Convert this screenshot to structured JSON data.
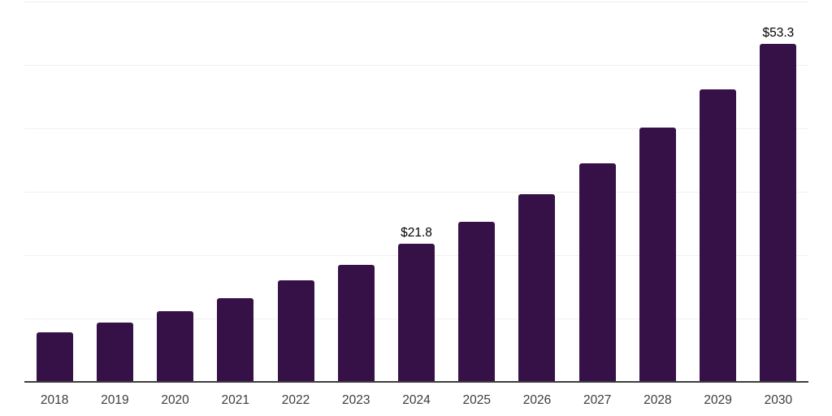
{
  "chart_data": {
    "type": "bar",
    "title": "",
    "xlabel": "",
    "ylabel": "",
    "categories": [
      "2018",
      "2019",
      "2020",
      "2021",
      "2022",
      "2023",
      "2024",
      "2025",
      "2026",
      "2027",
      "2028",
      "2029",
      "2030"
    ],
    "values": [
      7.8,
      9.3,
      11.2,
      13.2,
      16.0,
      18.4,
      21.8,
      25.3,
      29.6,
      34.5,
      40.1,
      46.2,
      53.3
    ],
    "data_labels": [
      {
        "category": "2024",
        "label": "$21.8"
      },
      {
        "category": "2030",
        "label": "$53.3"
      }
    ],
    "ylim": [
      0,
      60
    ],
    "gridline_values": [
      10,
      20,
      30,
      40,
      50,
      60
    ],
    "grid": "horizontal",
    "legend": "none",
    "colors": {
      "bar": "#361148",
      "axis_line": "#3d3d3d",
      "gridline": "#f0f0f0",
      "tick_label": "#3c3c3c",
      "data_label": "#000000",
      "background": "#ffffff"
    }
  }
}
